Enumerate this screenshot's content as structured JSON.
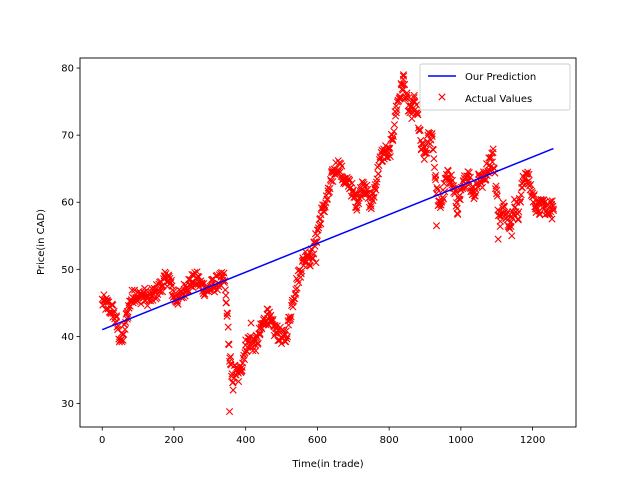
{
  "chart_data": {
    "type": "scatter",
    "xlabel": "Time(in trade)",
    "ylabel": "Price(in CAD)",
    "xlim": [
      -62,
      1321
    ],
    "ylim": [
      26.5,
      81.5
    ],
    "xticks": [
      0,
      200,
      400,
      600,
      800,
      1000,
      1200
    ],
    "yticks": [
      30,
      40,
      50,
      60,
      70,
      80
    ],
    "grid": false,
    "legend_position": "upper-right",
    "colors": {
      "prediction": "#0000ff",
      "actual": "#ff0000"
    },
    "series": [
      {
        "name": "Our Prediction",
        "kind": "line",
        "color": "#0000ff",
        "x": [
          0,
          1258
        ],
        "y": [
          41.0,
          68.0
        ]
      },
      {
        "name": "Actual Values",
        "kind": "scatter",
        "marker": "x",
        "color": "#ff0000",
        "keypoints": [
          [
            0,
            45.2
          ],
          [
            15,
            44.6
          ],
          [
            30,
            43.8
          ],
          [
            40,
            42.0
          ],
          [
            48,
            40.0
          ],
          [
            55,
            39.3
          ],
          [
            62,
            41.0
          ],
          [
            70,
            43.5
          ],
          [
            80,
            45.5
          ],
          [
            90,
            46.5
          ],
          [
            100,
            45.8
          ],
          [
            115,
            46.2
          ],
          [
            130,
            45.6
          ],
          [
            145,
            46.3
          ],
          [
            160,
            47.2
          ],
          [
            175,
            48.4
          ],
          [
            185,
            48.8
          ],
          [
            195,
            47.0
          ],
          [
            205,
            45.5
          ],
          [
            220,
            46.0
          ],
          [
            235,
            47.6
          ],
          [
            250,
            48.2
          ],
          [
            265,
            48.5
          ],
          [
            280,
            47.3
          ],
          [
            295,
            47.0
          ],
          [
            310,
            47.6
          ],
          [
            325,
            48.2
          ],
          [
            340,
            48.5
          ],
          [
            348,
            44.0
          ],
          [
            352,
            40.0
          ],
          [
            356,
            36.0
          ],
          [
            362,
            33.5
          ],
          [
            370,
            35.0
          ],
          [
            380,
            34.0
          ],
          [
            390,
            36.0
          ],
          [
            400,
            38.5
          ],
          [
            410,
            39.5
          ],
          [
            420,
            38.8
          ],
          [
            430,
            39.0
          ],
          [
            440,
            40.5
          ],
          [
            450,
            42.0
          ],
          [
            460,
            43.3
          ],
          [
            470,
            42.0
          ],
          [
            480,
            41.0
          ],
          [
            490,
            40.5
          ],
          [
            500,
            40.0
          ],
          [
            510,
            39.5
          ],
          [
            520,
            42.0
          ],
          [
            530,
            45.0
          ],
          [
            540,
            47.5
          ],
          [
            550,
            49.5
          ],
          [
            560,
            51.0
          ],
          [
            570,
            52.5
          ],
          [
            580,
            51.5
          ],
          [
            590,
            53.0
          ],
          [
            600,
            55.5
          ],
          [
            610,
            58.0
          ],
          [
            620,
            59.5
          ],
          [
            630,
            61.0
          ],
          [
            640,
            63.5
          ],
          [
            650,
            65.0
          ],
          [
            660,
            65.5
          ],
          [
            670,
            64.0
          ],
          [
            680,
            62.5
          ],
          [
            690,
            63.0
          ],
          [
            700,
            61.0
          ],
          [
            710,
            60.0
          ],
          [
            720,
            61.5
          ],
          [
            730,
            63.0
          ],
          [
            740,
            61.0
          ],
          [
            750,
            59.5
          ],
          [
            760,
            62.0
          ],
          [
            770,
            65.0
          ],
          [
            780,
            67.0
          ],
          [
            790,
            67.5
          ],
          [
            800,
            67.0
          ],
          [
            810,
            70.0
          ],
          [
            820,
            74.0
          ],
          [
            830,
            76.0
          ],
          [
            840,
            78.0
          ],
          [
            850,
            75.0
          ],
          [
            860,
            73.0
          ],
          [
            870,
            75.0
          ],
          [
            880,
            72.5
          ],
          [
            890,
            68.0
          ],
          [
            900,
            67.0
          ],
          [
            910,
            69.5
          ],
          [
            920,
            70.0
          ],
          [
            930,
            63.0
          ],
          [
            940,
            59.0
          ],
          [
            950,
            61.0
          ],
          [
            960,
            63.5
          ],
          [
            970,
            64.0
          ],
          [
            980,
            62.0
          ],
          [
            990,
            59.0
          ],
          [
            1000,
            61.0
          ],
          [
            1010,
            63.0
          ],
          [
            1020,
            64.5
          ],
          [
            1030,
            62.0
          ],
          [
            1040,
            61.5
          ],
          [
            1050,
            64.0
          ],
          [
            1060,
            63.0
          ],
          [
            1070,
            64.5
          ],
          [
            1080,
            66.0
          ],
          [
            1090,
            67.0
          ],
          [
            1100,
            61.0
          ],
          [
            1110,
            57.0
          ],
          [
            1120,
            59.5
          ],
          [
            1130,
            58.0
          ],
          [
            1140,
            56.5
          ],
          [
            1150,
            60.0
          ],
          [
            1160,
            58.5
          ],
          [
            1170,
            62.0
          ],
          [
            1180,
            64.5
          ],
          [
            1190,
            63.0
          ],
          [
            1200,
            61.0
          ],
          [
            1210,
            59.5
          ],
          [
            1220,
            59.0
          ],
          [
            1230,
            60.0
          ],
          [
            1240,
            58.5
          ],
          [
            1250,
            59.5
          ],
          [
            1258,
            59.0
          ]
        ],
        "outliers": [
          [
            355,
            28.8
          ],
          [
            358,
            37.0
          ],
          [
            365,
            32.0
          ],
          [
            345,
            45.0
          ],
          [
            348,
            43.5
          ],
          [
            415,
            42.0
          ],
          [
            462,
            44.0
          ],
          [
            596,
            51.0
          ],
          [
            932,
            56.5
          ],
          [
            1104,
            54.5
          ],
          [
            1142,
            55.0
          ],
          [
            1254,
            57.5
          ],
          [
            840,
            79.0
          ],
          [
            835,
            77.5
          ]
        ]
      }
    ]
  }
}
